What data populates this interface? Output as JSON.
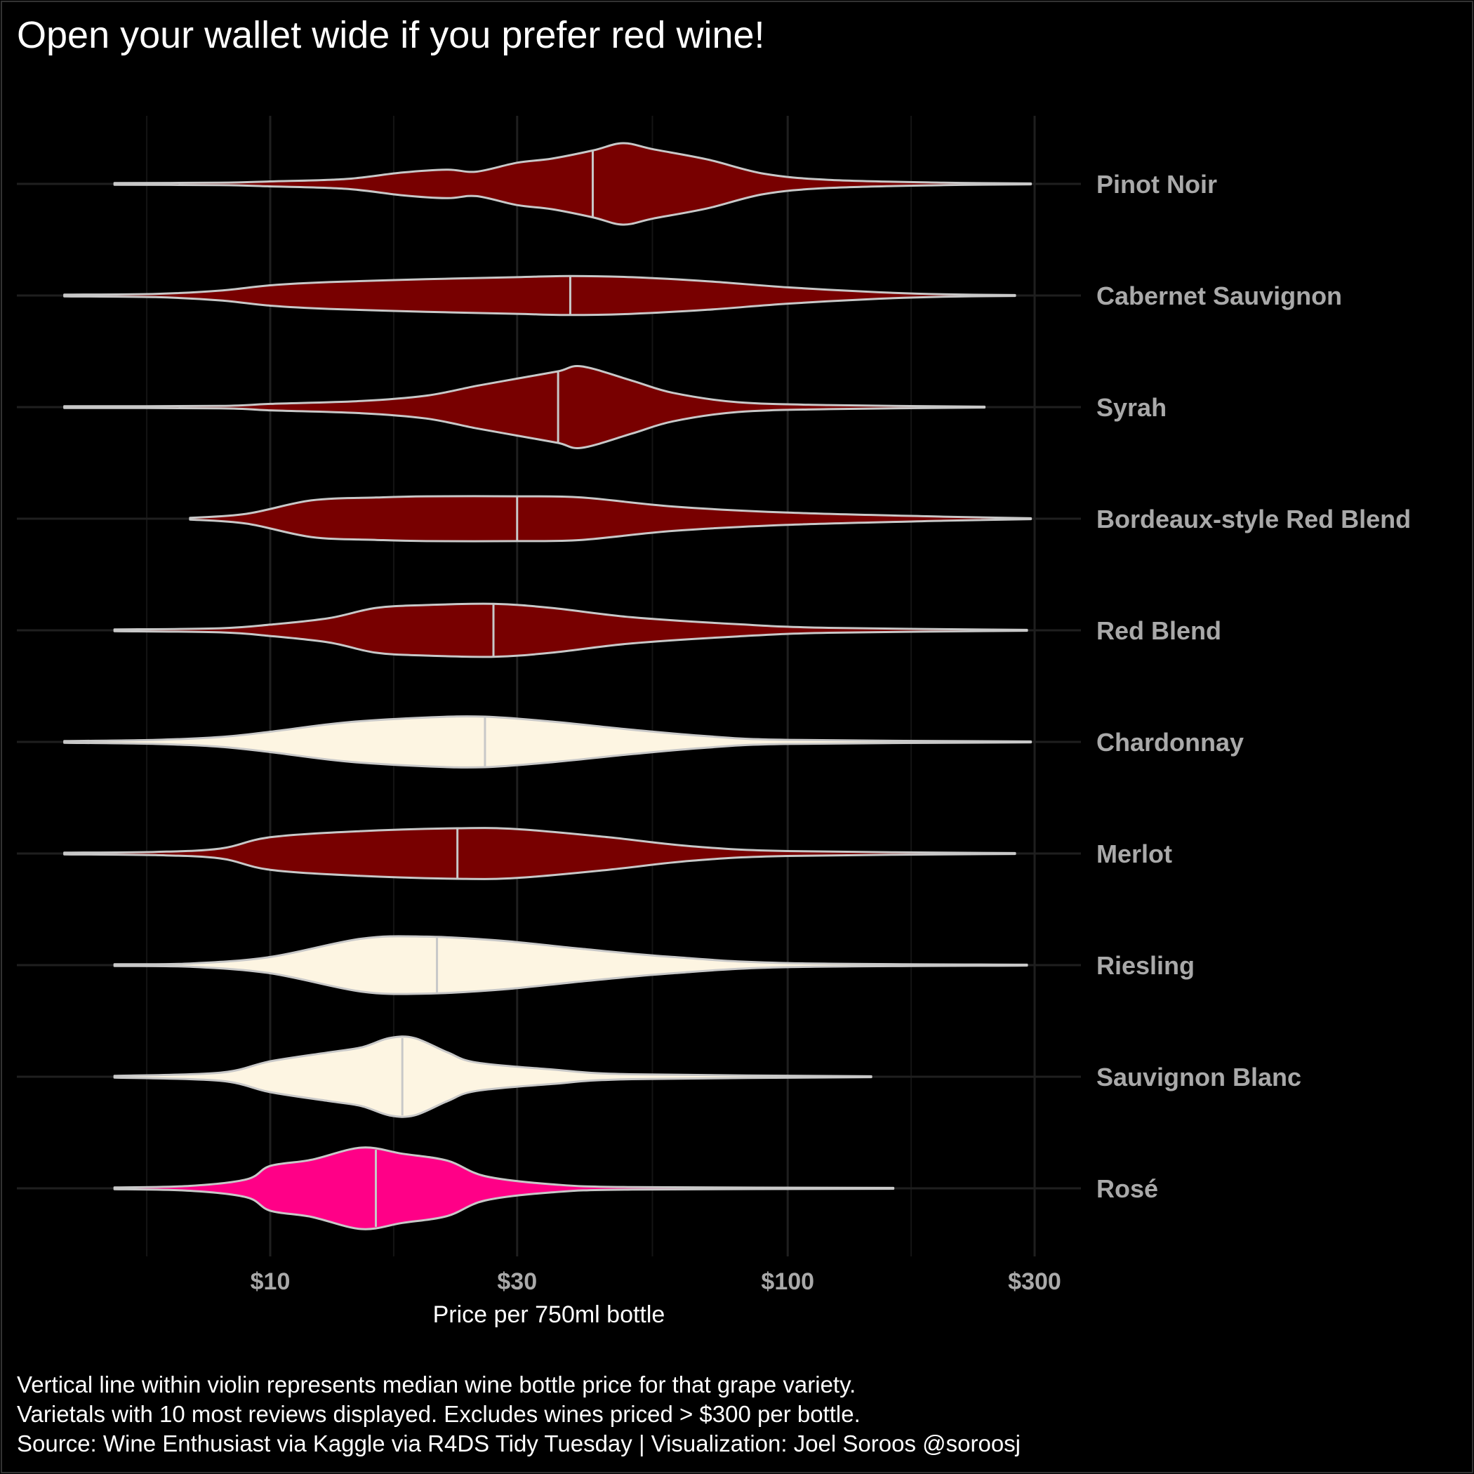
{
  "chart_data": {
    "type": "violin",
    "title": "Open your wallet wide if you prefer red wine!",
    "xlabel": "Price per 750ml bottle",
    "x_scale": "log10",
    "xlim": [
      4,
      300
    ],
    "x_ticks": [
      10,
      30,
      100,
      300
    ],
    "x_tick_labels": [
      "$10",
      "$30",
      "$100",
      "$300"
    ],
    "grid": true,
    "colors": {
      "red": "#780000",
      "white": "#fdf5e2",
      "rose": "#ff0087",
      "outline": "#c8c8c8",
      "background": "#000000"
    },
    "categories": [
      "Pinot Noir",
      "Cabernet Sauvignon",
      "Syrah",
      "Bordeaux-style Red Blend",
      "Red Blend",
      "Chardonnay",
      "Merlot",
      "Riesling",
      "Sauvignon Blanc",
      "Rosé"
    ],
    "series": [
      {
        "name": "Pinot Noir",
        "color_group": "red",
        "min": 5,
        "max": 295,
        "median": 42,
        "density": [
          [
            5,
            0.02
          ],
          [
            8,
            0.03
          ],
          [
            10,
            0.06
          ],
          [
            14,
            0.12
          ],
          [
            18,
            0.28
          ],
          [
            22,
            0.35
          ],
          [
            25,
            0.3
          ],
          [
            30,
            0.52
          ],
          [
            35,
            0.62
          ],
          [
            42,
            0.82
          ],
          [
            48,
            1.0
          ],
          [
            55,
            0.85
          ],
          [
            70,
            0.6
          ],
          [
            90,
            0.25
          ],
          [
            120,
            0.1
          ],
          [
            200,
            0.03
          ],
          [
            295,
            0.01
          ]
        ]
      },
      {
        "name": "Cabernet Sauvignon",
        "color_group": "red",
        "min": 4,
        "max": 275,
        "median": 38,
        "density": [
          [
            4,
            0.02
          ],
          [
            6,
            0.04
          ],
          [
            8,
            0.12
          ],
          [
            10,
            0.25
          ],
          [
            13,
            0.33
          ],
          [
            20,
            0.4
          ],
          [
            30,
            0.45
          ],
          [
            38,
            0.48
          ],
          [
            50,
            0.45
          ],
          [
            70,
            0.35
          ],
          [
            100,
            0.2
          ],
          [
            150,
            0.08
          ],
          [
            200,
            0.03
          ],
          [
            275,
            0.01
          ]
        ]
      },
      {
        "name": "Syrah",
        "color_group": "red",
        "min": 4,
        "max": 240,
        "median": 36,
        "density": [
          [
            4,
            0.02
          ],
          [
            8,
            0.03
          ],
          [
            10,
            0.08
          ],
          [
            15,
            0.15
          ],
          [
            20,
            0.28
          ],
          [
            25,
            0.52
          ],
          [
            30,
            0.7
          ],
          [
            36,
            0.88
          ],
          [
            40,
            1.0
          ],
          [
            50,
            0.65
          ],
          [
            60,
            0.35
          ],
          [
            80,
            0.12
          ],
          [
            120,
            0.05
          ],
          [
            240,
            0.01
          ]
        ]
      },
      {
        "name": "Bordeaux-style Red Blend",
        "color_group": "red",
        "min": 7,
        "max": 295,
        "median": 30,
        "density": [
          [
            7,
            0.02
          ],
          [
            9,
            0.12
          ],
          [
            12,
            0.45
          ],
          [
            16,
            0.52
          ],
          [
            20,
            0.55
          ],
          [
            30,
            0.55
          ],
          [
            40,
            0.52
          ],
          [
            60,
            0.3
          ],
          [
            100,
            0.15
          ],
          [
            200,
            0.05
          ],
          [
            295,
            0.01
          ]
        ]
      },
      {
        "name": "Red Blend",
        "color_group": "red",
        "min": 5,
        "max": 290,
        "median": 27,
        "density": [
          [
            5,
            0.02
          ],
          [
            8,
            0.05
          ],
          [
            10,
            0.14
          ],
          [
            13,
            0.3
          ],
          [
            16,
            0.55
          ],
          [
            20,
            0.62
          ],
          [
            27,
            0.65
          ],
          [
            35,
            0.55
          ],
          [
            50,
            0.32
          ],
          [
            80,
            0.15
          ],
          [
            120,
            0.06
          ],
          [
            290,
            0.01
          ]
        ]
      },
      {
        "name": "Chardonnay",
        "color_group": "white",
        "min": 4,
        "max": 295,
        "median": 26,
        "density": [
          [
            4,
            0.02
          ],
          [
            6,
            0.05
          ],
          [
            8,
            0.12
          ],
          [
            10,
            0.25
          ],
          [
            14,
            0.48
          ],
          [
            20,
            0.6
          ],
          [
            26,
            0.62
          ],
          [
            35,
            0.5
          ],
          [
            50,
            0.3
          ],
          [
            70,
            0.14
          ],
          [
            100,
            0.05
          ],
          [
            295,
            0.01
          ]
        ]
      },
      {
        "name": "Merlot",
        "color_group": "red",
        "min": 4,
        "max": 275,
        "median": 23,
        "density": [
          [
            4,
            0.02
          ],
          [
            6,
            0.04
          ],
          [
            8,
            0.12
          ],
          [
            10,
            0.4
          ],
          [
            15,
            0.55
          ],
          [
            23,
            0.62
          ],
          [
            30,
            0.6
          ],
          [
            45,
            0.4
          ],
          [
            65,
            0.18
          ],
          [
            100,
            0.06
          ],
          [
            275,
            0.01
          ]
        ]
      },
      {
        "name": "Riesling",
        "color_group": "white",
        "min": 5,
        "max": 290,
        "median": 21,
        "density": [
          [
            5,
            0.02
          ],
          [
            7,
            0.04
          ],
          [
            10,
            0.2
          ],
          [
            15,
            0.65
          ],
          [
            20,
            0.7
          ],
          [
            28,
            0.6
          ],
          [
            40,
            0.4
          ],
          [
            60,
            0.2
          ],
          [
            100,
            0.05
          ],
          [
            290,
            0.01
          ]
        ]
      },
      {
        "name": "Sauvignon Blanc",
        "color_group": "white",
        "min": 5,
        "max": 145,
        "median": 18,
        "density": [
          [
            5,
            0.02
          ],
          [
            8,
            0.1
          ],
          [
            10,
            0.38
          ],
          [
            13,
            0.6
          ],
          [
            15,
            0.72
          ],
          [
            17,
            0.95
          ],
          [
            19,
            0.95
          ],
          [
            22,
            0.6
          ],
          [
            25,
            0.35
          ],
          [
            35,
            0.18
          ],
          [
            50,
            0.06
          ],
          [
            145,
            0.01
          ]
        ]
      },
      {
        "name": "Rosé",
        "color_group": "rose",
        "min": 5,
        "max": 160,
        "median": 16,
        "density": [
          [
            5,
            0.02
          ],
          [
            7,
            0.06
          ],
          [
            9,
            0.22
          ],
          [
            10,
            0.55
          ],
          [
            12,
            0.7
          ],
          [
            15,
            1.0
          ],
          [
            18,
            0.85
          ],
          [
            22,
            0.68
          ],
          [
            26,
            0.3
          ],
          [
            35,
            0.1
          ],
          [
            50,
            0.03
          ],
          [
            160,
            0.01
          ]
        ]
      }
    ]
  },
  "caption": {
    "line1": "Vertical line within violin represents median wine bottle price for that grape variety.",
    "line2": "Varietals with 10 most reviews displayed.  Excludes wines priced > $300 per bottle.",
    "line3": "Source: Wine Enthusiast via Kaggle via R4DS Tidy Tuesday       |       Visualization: Joel Soroos @soroosj"
  }
}
